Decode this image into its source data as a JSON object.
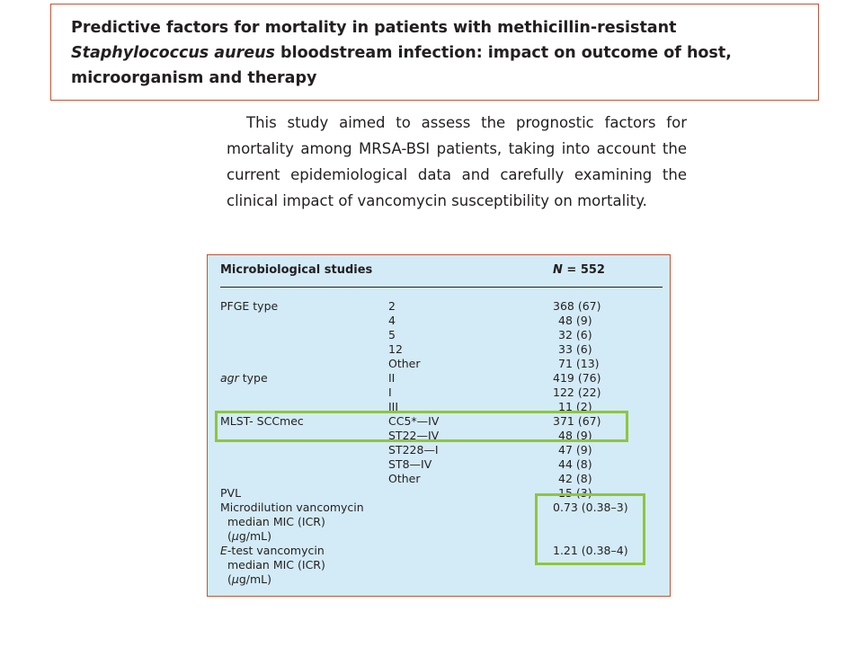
{
  "title": {
    "lines": [
      "Predictive factors for mortality in patients with methicillin-resistant",
      "bloodstream infection: impact on outcome of host,",
      "microorganism and therapy"
    ],
    "italic_part": "Staphylococcus aureus"
  },
  "intro": {
    "lines": [
      "This study aimed to assess the prognostic factors for",
      "mortality among MRSA-BSI patients, taking into account the",
      "current epidemiological data and carefully examining the",
      "clinical impact of vancomycin susceptibility on mortality."
    ]
  },
  "table": {
    "header": {
      "label": "Microbiological studies",
      "n_label": "N",
      "n_value": "= 552"
    },
    "pfge": {
      "label": "PFGE type",
      "rows": [
        {
          "cat": "2",
          "val": "368 (67)"
        },
        {
          "cat": "4",
          "val": "48 (9)"
        },
        {
          "cat": "5",
          "val": "32 (6)"
        },
        {
          "cat": "12",
          "val": "33 (6)"
        },
        {
          "cat": "Other",
          "val": "71 (13)"
        }
      ]
    },
    "agr": {
      "label_italic": "agr",
      "label_rest": " type",
      "rows": [
        {
          "cat": "II",
          "val": "419 (76)"
        },
        {
          "cat": "I",
          "val": "122 (22)"
        },
        {
          "cat": "III",
          "val": "11 (2)"
        }
      ]
    },
    "mlst": {
      "label": "MLST- SCCmec",
      "rows": [
        {
          "cat": "CC5*—IV",
          "val": "371 (67)"
        },
        {
          "cat": "ST22—IV",
          "val": "48 (9)"
        },
        {
          "cat": "ST228—I",
          "val": "47 (9)"
        },
        {
          "cat": "ST8—IV",
          "val": "44 (8)"
        },
        {
          "cat": "Other",
          "val": "42 (8)"
        }
      ]
    },
    "pvl": {
      "label": "PVL",
      "val": "15 (3)"
    },
    "microdilution": {
      "lines": [
        "Microdilution vancomycin",
        "median MIC (ICR)"
      ],
      "unit_mu": "μ",
      "unit_rest": "g/mL)",
      "val": "0.73 (0.38–3)"
    },
    "etest": {
      "label_italic": "E",
      "label_rest": "-test vancomycin",
      "line2": "median MIC (ICR)",
      "unit_mu": "μ",
      "unit_rest": "g/mL)",
      "val": "1.21 (0.38–4)"
    }
  },
  "colors": {
    "table_background": "#d3ebf6",
    "border": "#c0543a",
    "highlight": "#8dc63f"
  }
}
